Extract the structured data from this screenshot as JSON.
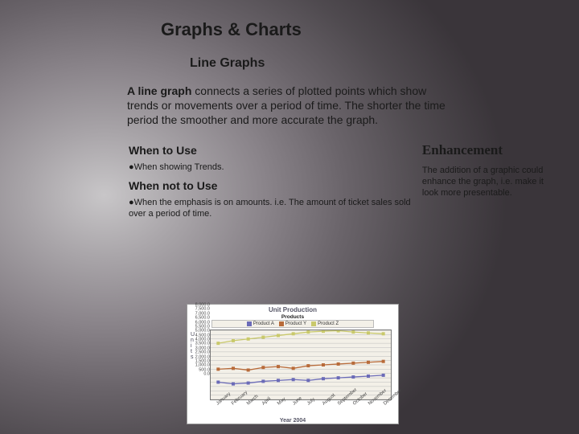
{
  "title": "Graphs & Charts",
  "subtitle": "Line Graphs",
  "intro_lead": "A line graph",
  "intro_rest": " connects a series of plotted points which show trends or movements over a period of time. The shorter the time period the smoother and more accurate the graph.",
  "when_to_use_h": "When to Use",
  "when_to_use_b": "●When showing Trends.",
  "when_not_h": "When not to Use",
  "when_not_b": "●When the emphasis is on amounts. i.e. The amount of ticket sales sold over a period of time.",
  "enh_h": "Enhancement",
  "enh_b": "The addition of a graphic could enhance the graph, i.e. make it look more presentable.",
  "chart": {
    "title": "Unit Production",
    "legend_label": "Products",
    "series": [
      {
        "name": "Product A",
        "color": "#6b6bb8",
        "values": [
          2000,
          1800,
          1900,
          2100,
          2200,
          2300,
          2200,
          2400,
          2500,
          2600,
          2700,
          2800
        ]
      },
      {
        "name": "Product Y",
        "color": "#b86b3a",
        "values": [
          3500,
          3600,
          3400,
          3700,
          3800,
          3600,
          3900,
          4000,
          4100,
          4200,
          4300,
          4400
        ]
      },
      {
        "name": "Product Z",
        "color": "#c9c96b",
        "values": [
          6500,
          6800,
          7000,
          7200,
          7400,
          7600,
          7800,
          7900,
          7950,
          7800,
          7700,
          7600
        ]
      }
    ],
    "categories": [
      "January",
      "February",
      "March",
      "April",
      "May",
      "June",
      "July",
      "August",
      "September",
      "October",
      "November",
      "December"
    ],
    "ylim": [
      0,
      8000
    ],
    "ytick_step": 500,
    "xaxis_title": "Year 2004",
    "yaxis_title": "Units",
    "plot_bg": "#f3f0e8",
    "grid_color": "#bbbbbb",
    "marker_size": 2
  }
}
